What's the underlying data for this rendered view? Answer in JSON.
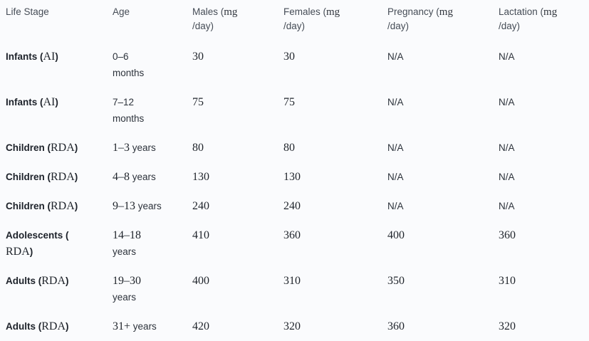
{
  "table": {
    "description": "Recommended magnesium intakes by life stage",
    "colors": {
      "background": "#fafbfd",
      "header_text": "#454c56",
      "body_text": "#232830",
      "bold_text": "#1d222a",
      "bottom_border": "#e2e4e9"
    },
    "headers": [
      {
        "pre": "Life Stage",
        "serif": "",
        "post": ""
      },
      {
        "pre": "Age",
        "serif": "",
        "post": ""
      },
      {
        "pre": "Males (",
        "serif": "mg",
        "post": "/day)"
      },
      {
        "pre": "Females (",
        "serif": "mg",
        "post": "/day)"
      },
      {
        "pre": "Pregnancy (",
        "serif": "mg",
        "post": "/day)"
      },
      {
        "pre": "Lactation (",
        "serif": "mg",
        "post": "/day)"
      }
    ],
    "rows": [
      {
        "stage": {
          "name": "Infants",
          "abbr": "AI",
          "wrapped": false
        },
        "age": {
          "num": "0–6",
          "unit": "months",
          "num_serif": false,
          "wrapped": true
        },
        "values": [
          "30",
          "30",
          "N/A",
          "N/A"
        ]
      },
      {
        "stage": {
          "name": "Infants",
          "abbr": "AI",
          "wrapped": false
        },
        "age": {
          "num": "7–12",
          "unit": "months",
          "num_serif": false,
          "wrapped": true
        },
        "values": [
          "75",
          "75",
          "N/A",
          "N/A"
        ]
      },
      {
        "stage": {
          "name": "Children",
          "abbr": "RDA",
          "wrapped": false
        },
        "age": {
          "num": "1–3",
          "unit": "years",
          "num_serif": true,
          "wrapped": false
        },
        "values": [
          "80",
          "80",
          "N/A",
          "N/A"
        ]
      },
      {
        "stage": {
          "name": "Children",
          "abbr": "RDA",
          "wrapped": false
        },
        "age": {
          "num": "4–8",
          "unit": "years",
          "num_serif": true,
          "wrapped": false
        },
        "values": [
          "130",
          "130",
          "N/A",
          "N/A"
        ]
      },
      {
        "stage": {
          "name": "Children",
          "abbr": "RDA",
          "wrapped": false
        },
        "age": {
          "num": "9–13",
          "unit": "years",
          "num_serif": true,
          "wrapped": false
        },
        "values": [
          "240",
          "240",
          "N/A",
          "N/A"
        ]
      },
      {
        "stage": {
          "name": "Adolescents",
          "abbr": "RDA",
          "wrapped": true
        },
        "age": {
          "num": "14–18",
          "unit": "years",
          "num_serif": true,
          "wrapped": true
        },
        "values": [
          "410",
          "360",
          "400",
          "360"
        ]
      },
      {
        "stage": {
          "name": "Adults",
          "abbr": "RDA",
          "wrapped": false
        },
        "age": {
          "num": "19–30",
          "unit": "years",
          "num_serif": true,
          "wrapped": true
        },
        "values": [
          "400",
          "310",
          "350",
          "310"
        ]
      },
      {
        "stage": {
          "name": "Adults",
          "abbr": "RDA",
          "wrapped": false
        },
        "age": {
          "num": "31+",
          "unit": "years",
          "num_serif": true,
          "wrapped": false
        },
        "values": [
          "420",
          "320",
          "360",
          "320"
        ]
      }
    ]
  }
}
